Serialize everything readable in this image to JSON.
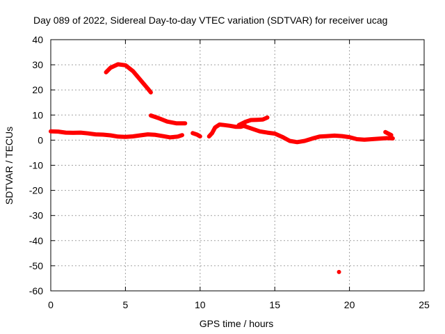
{
  "chart_data": {
    "type": "scatter",
    "title": "Day 089 of 2022, Sidereal Day-to-day VTEC variation (SDTVAR) for receiver ucag",
    "xlabel": "GPS time / hours",
    "ylabel": "SDTVAR / TECUs",
    "xlim": [
      0,
      25
    ],
    "ylim": [
      -60,
      40
    ],
    "xticks": [
      0,
      5,
      10,
      15,
      20,
      25
    ],
    "yticks": [
      40,
      30,
      20,
      10,
      0,
      -10,
      -20,
      -30,
      -40,
      -50,
      -60
    ],
    "grid": true,
    "color": "#ff0000",
    "series": [
      {
        "name": "segment-1",
        "x": [
          0,
          0.5,
          1,
          1.5,
          2,
          2.5,
          3,
          3.5,
          4,
          4.5,
          5,
          5.5,
          6,
          6.5,
          7,
          7.5,
          8,
          8.5,
          8.8
        ],
        "y": [
          3.5,
          3.4,
          3.0,
          2.9,
          3.0,
          2.7,
          2.3,
          2.2,
          1.9,
          1.4,
          1.3,
          1.5,
          1.9,
          2.3,
          2.1,
          1.6,
          1.1,
          1.4,
          2.0
        ]
      },
      {
        "name": "segment-2",
        "x": [
          3.7,
          4.0,
          4.5,
          5.0,
          5.5,
          6.0,
          6.5,
          6.7
        ],
        "y": [
          27,
          28.8,
          30.2,
          29.8,
          27.5,
          24,
          20.5,
          19
        ]
      },
      {
        "name": "segment-3",
        "x": [
          6.7,
          7.2,
          7.8,
          8.4,
          9.0
        ],
        "y": [
          9.8,
          8.8,
          7.4,
          6.7,
          6.7
        ]
      },
      {
        "name": "segment-4",
        "x": [
          9.5,
          9.8,
          10.0
        ],
        "y": [
          2.8,
          2.2,
          1.5
        ]
      },
      {
        "name": "segment-5",
        "x": [
          10.6,
          10.8,
          11.0,
          11.3,
          11.6,
          12.0,
          12.4,
          12.7,
          13.0
        ],
        "y": [
          1.5,
          2.8,
          5.0,
          6.2,
          6.0,
          5.7,
          5.3,
          5.3,
          5.8
        ]
      },
      {
        "name": "segment-6",
        "x": [
          12.6,
          13.0,
          13.4,
          13.8,
          14.2,
          14.5
        ],
        "y": [
          6.0,
          7.2,
          8.0,
          8.1,
          8.2,
          9.0
        ]
      },
      {
        "name": "segment-7",
        "x": [
          13.0,
          13.5,
          14.0,
          14.5,
          15.0,
          15.5,
          16.0,
          16.5,
          17.0,
          17.5,
          18.0,
          18.5,
          19.0,
          19.5,
          20.0,
          20.5,
          21.0,
          21.5,
          22.0,
          22.5,
          22.9
        ],
        "y": [
          5.5,
          4.5,
          3.5,
          3.0,
          2.6,
          1.3,
          -0.3,
          -0.8,
          -0.3,
          0.6,
          1.4,
          1.6,
          1.8,
          1.6,
          1.2,
          0.4,
          0.2,
          0.4,
          0.6,
          0.8,
          0.7
        ]
      },
      {
        "name": "segment-8",
        "x": [
          22.4,
          22.8
        ],
        "y": [
          3.2,
          2.0
        ]
      },
      {
        "name": "outlier",
        "x": [
          19.3
        ],
        "y": [
          -52.5
        ]
      }
    ]
  }
}
